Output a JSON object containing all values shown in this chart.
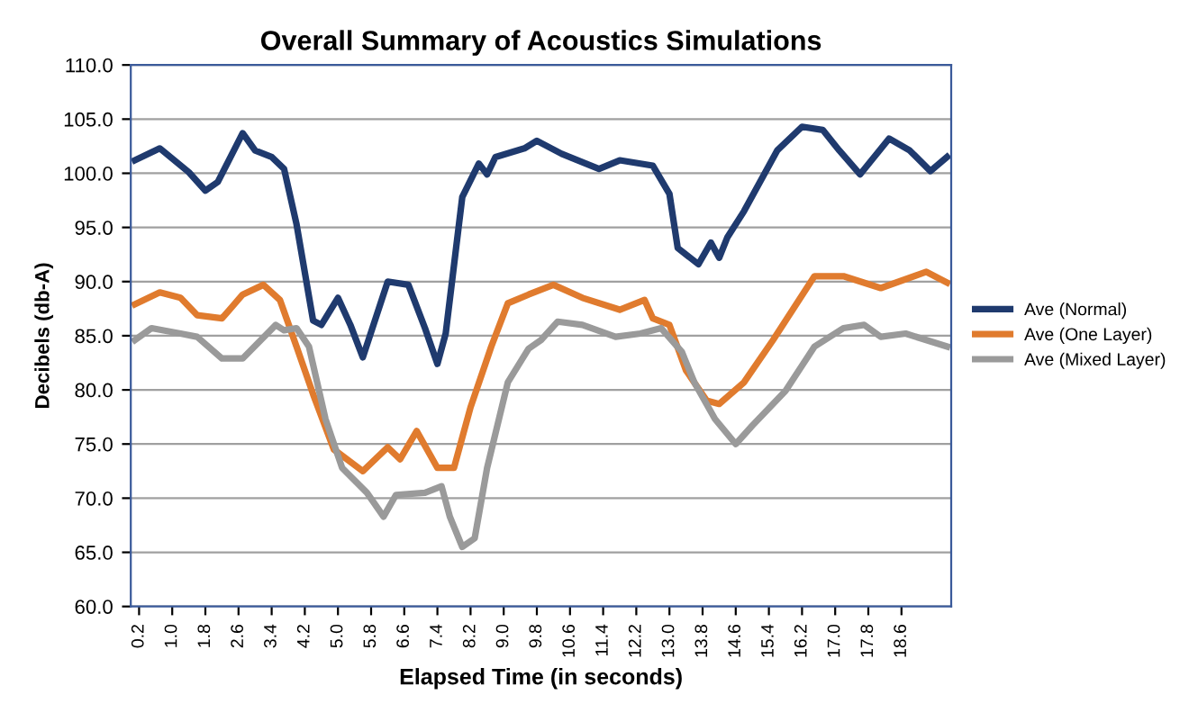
{
  "chart_data": {
    "type": "line",
    "title": "Overall Summary of Acoustics Simulations",
    "xlabel": "Elapsed Time (in seconds)",
    "ylabel": "Decibels (db-A)",
    "xlim": [
      0,
      19.8
    ],
    "ylim": [
      60,
      110
    ],
    "xticks": [
      0.2,
      {
        "value": 1.0,
        "label": "1.0"
      },
      1.8,
      2.6,
      3.4,
      4.2,
      {
        "value": 5.0,
        "label": "5.0"
      },
      5.8,
      6.6,
      7.4,
      8.2,
      {
        "value": 9.0,
        "label": "9.0"
      },
      9.8,
      10.6,
      11.4,
      12.2,
      {
        "value": 13.0,
        "label": "13.0"
      },
      13.8,
      14.6,
      15.4,
      16.2,
      {
        "value": 17.0,
        "label": "17.0"
      },
      17.8,
      18.6
    ],
    "yticks": [
      {
        "value": 60,
        "label": "60.0"
      },
      {
        "value": 65,
        "label": "65.0"
      },
      {
        "value": 70,
        "label": "70.0"
      },
      {
        "value": 75,
        "label": "75.0"
      },
      {
        "value": 80,
        "label": "80.0"
      },
      {
        "value": 85,
        "label": "85.0"
      },
      {
        "value": 90,
        "label": "90.0"
      },
      {
        "value": 95,
        "label": "95.0"
      },
      {
        "value": 100,
        "label": "100.0"
      },
      {
        "value": 105,
        "label": "105.0"
      },
      {
        "value": 110,
        "label": "110.0"
      }
    ],
    "grid": "y",
    "legend": "right",
    "marker": "none",
    "line_style": "solid",
    "series": [
      {
        "name": "Ave (Normal)",
        "color": "#1f3a6e",
        "x": [
          0.1,
          0.7,
          1.4,
          1.8,
          2.1,
          2.7,
          3.0,
          3.4,
          3.7,
          4.0,
          4.4,
          4.6,
          5.0,
          5.3,
          5.6,
          6.2,
          6.7,
          7.1,
          7.4,
          7.6,
          8.0,
          8.4,
          8.6,
          8.8,
          9.5,
          9.8,
          10.4,
          11.3,
          11.8,
          12.6,
          13.0,
          13.2,
          13.7,
          14.0,
          14.2,
          14.4,
          14.8,
          15.6,
          16.2,
          16.7,
          17.1,
          17.6,
          18.3,
          18.8,
          19.3,
          19.7
        ],
        "values": [
          101.2,
          102.3,
          100.1,
          98.4,
          99.2,
          103.7,
          102.1,
          101.5,
          100.4,
          95.3,
          86.4,
          86.0,
          88.5,
          86.0,
          83.0,
          90.0,
          89.7,
          85.7,
          82.4,
          85.2,
          97.8,
          100.9,
          99.9,
          101.5,
          102.3,
          103.0,
          101.8,
          100.4,
          101.2,
          100.7,
          98.1,
          93.1,
          91.6,
          93.6,
          92.2,
          94.1,
          96.5,
          102.1,
          104.3,
          104.0,
          102.1,
          99.9,
          103.2,
          102.1,
          100.2,
          101.5
        ]
      },
      {
        "name": "Ave (One Layer)",
        "color": "#e07b2e",
        "x": [
          0.1,
          0.7,
          1.2,
          1.6,
          2.2,
          2.7,
          3.2,
          3.6,
          4.0,
          4.4,
          4.9,
          5.6,
          6.2,
          6.5,
          6.9,
          7.4,
          7.8,
          8.2,
          8.7,
          9.1,
          9.6,
          10.2,
          10.9,
          11.8,
          12.4,
          12.6,
          13.0,
          13.4,
          13.9,
          14.2,
          14.8,
          15.5,
          16.5,
          17.2,
          18.1,
          19.2,
          19.7
        ],
        "values": [
          87.9,
          89.0,
          88.5,
          86.9,
          86.6,
          88.8,
          89.7,
          88.3,
          84.0,
          79.6,
          74.5,
          72.5,
          74.7,
          73.6,
          76.2,
          72.8,
          72.8,
          78.4,
          84.0,
          88.0,
          88.8,
          89.7,
          88.5,
          87.4,
          88.3,
          86.6,
          86.0,
          81.8,
          79.0,
          78.7,
          80.7,
          84.6,
          90.5,
          90.5,
          89.4,
          90.9,
          89.9
        ]
      },
      {
        "name": "Ave (Mixed Layer)",
        "color": "#9a9a9a",
        "x": [
          0.1,
          0.5,
          1.2,
          1.6,
          2.2,
          2.7,
          3.5,
          3.7,
          4.0,
          4.3,
          4.7,
          5.1,
          5.7,
          6.1,
          6.4,
          7.1,
          7.5,
          7.7,
          8.0,
          8.3,
          8.6,
          9.1,
          9.6,
          9.9,
          10.3,
          10.9,
          11.7,
          12.3,
          12.8,
          13.3,
          13.6,
          14.1,
          14.6,
          15.0,
          15.8,
          16.5,
          17.2,
          17.7,
          18.1,
          18.7,
          19.7
        ],
        "values": [
          84.6,
          85.7,
          85.2,
          84.9,
          82.9,
          82.9,
          86.0,
          85.5,
          85.7,
          84.0,
          77.3,
          72.8,
          70.5,
          68.3,
          70.3,
          70.5,
          71.1,
          68.3,
          65.5,
          66.3,
          72.8,
          80.7,
          83.8,
          84.6,
          86.3,
          86.0,
          84.9,
          85.2,
          85.7,
          83.5,
          80.7,
          77.3,
          75.0,
          76.7,
          79.9,
          84.0,
          85.7,
          86.0,
          84.9,
          85.2,
          84.0
        ]
      }
    ]
  }
}
